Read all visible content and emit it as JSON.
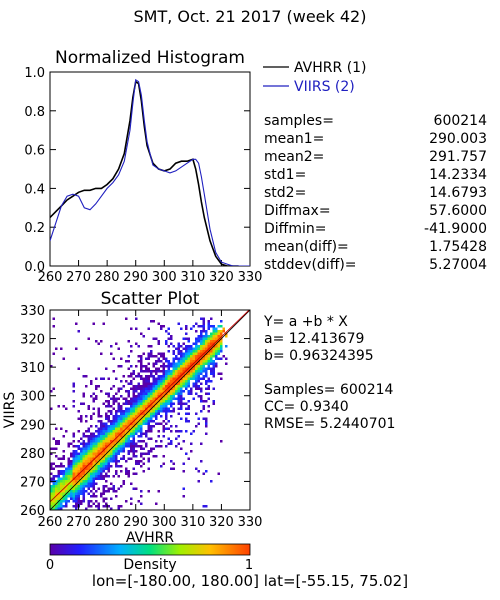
{
  "header": {
    "title": "SMT,  Oct. 21 2017 (week 42)"
  },
  "histogram": {
    "title": "Normalized Histogram",
    "legend": [
      {
        "label": "AVHRR (1)",
        "color": "#000000"
      },
      {
        "label": "VIIRS (2)",
        "color": "#2020c0"
      }
    ]
  },
  "stats": [
    {
      "label": "samples=",
      "value": "600214"
    },
    {
      "label": "mean1=",
      "value": "290.003"
    },
    {
      "label": "mean2=",
      "value": "291.757"
    },
    {
      "label": "std1=",
      "value": "14.2334"
    },
    {
      "label": "std2=",
      "value": "14.6793"
    },
    {
      "label": "Diffmax=",
      "value": "57.6000"
    },
    {
      "label": "Diffmin=",
      "value": "-41.9000"
    },
    {
      "label": "mean(diff)=",
      "value": "1.75428"
    },
    {
      "label": "stddev(diff)=",
      "value": "5.27004"
    }
  ],
  "scatter": {
    "title": "Scatter Plot",
    "xlabel": "AVHRR",
    "ylabel": "VIIRS"
  },
  "fit": {
    "lines": [
      "Y= a +b * X",
      "a= 12.413679",
      "b= 0.96324395",
      "",
      "Samples= 600214",
      "CC=  0.9340",
      "RMSE= 5.2440701"
    ]
  },
  "colorbar": {
    "label": "Density",
    "min": "0",
    "max": "1"
  },
  "footer": {
    "range": "lon=[-180.00, 180.00] lat=[-55.15, 75.02]"
  },
  "chart_data": [
    {
      "type": "line",
      "title": "Normalized Histogram",
      "xlim": [
        260,
        330
      ],
      "ylim": [
        0,
        1.0
      ],
      "xticks": [
        "260",
        "270",
        "280",
        "290",
        "300",
        "310",
        "320",
        "330"
      ],
      "yticks": [
        "0.0",
        "0.2",
        "0.4",
        "0.6",
        "0.8",
        "1.0"
      ],
      "series": [
        {
          "name": "AVHRR (1)",
          "color": "#000000",
          "x": [
            260,
            262,
            264,
            266,
            268,
            270,
            272,
            274,
            276,
            278,
            280,
            282,
            284,
            286,
            288,
            289,
            290,
            291,
            292,
            293,
            294,
            296,
            298,
            300,
            302,
            304,
            306,
            308,
            310,
            311,
            312,
            313,
            314,
            316,
            318,
            320,
            322,
            324,
            326
          ],
          "y": [
            0.25,
            0.28,
            0.31,
            0.34,
            0.36,
            0.38,
            0.39,
            0.39,
            0.4,
            0.4,
            0.42,
            0.45,
            0.5,
            0.58,
            0.75,
            0.87,
            0.95,
            0.94,
            0.85,
            0.72,
            0.62,
            0.53,
            0.5,
            0.49,
            0.5,
            0.53,
            0.54,
            0.54,
            0.55,
            0.5,
            0.42,
            0.33,
            0.25,
            0.13,
            0.05,
            0.01,
            0.0,
            0.0,
            0.0
          ]
        },
        {
          "name": "VIIRS (2)",
          "color": "#2020c0",
          "x": [
            260,
            262,
            264,
            266,
            268,
            270,
            272,
            274,
            276,
            278,
            280,
            282,
            284,
            286,
            288,
            289,
            290,
            291,
            292,
            293,
            294,
            296,
            298,
            300,
            302,
            304,
            306,
            308,
            310,
            311,
            312,
            313,
            314,
            316,
            318,
            320,
            322,
            324,
            326,
            330
          ],
          "y": [
            0.13,
            0.22,
            0.31,
            0.36,
            0.37,
            0.36,
            0.3,
            0.29,
            0.32,
            0.36,
            0.4,
            0.43,
            0.47,
            0.54,
            0.7,
            0.84,
            0.96,
            0.95,
            0.88,
            0.75,
            0.64,
            0.52,
            0.5,
            0.49,
            0.48,
            0.49,
            0.51,
            0.53,
            0.55,
            0.55,
            0.53,
            0.46,
            0.37,
            0.19,
            0.07,
            0.02,
            0.01,
            0.0,
            0.0,
            0.0
          ]
        }
      ]
    },
    {
      "type": "heatmap",
      "title": "Scatter Plot",
      "xlabel": "AVHRR",
      "ylabel": "VIIRS",
      "xlim": [
        260,
        330
      ],
      "ylim": [
        260,
        330
      ],
      "xticks": [
        "260",
        "270",
        "280",
        "290",
        "300",
        "310",
        "320",
        "330"
      ],
      "yticks": [
        "260",
        "270",
        "280",
        "290",
        "300",
        "310",
        "320",
        "330"
      ],
      "color_scale": {
        "label": "Density",
        "min": 0,
        "max": 1
      },
      "fit": {
        "a": 12.413679,
        "b": 0.96324395
      },
      "one_to_one_line": true
    }
  ]
}
